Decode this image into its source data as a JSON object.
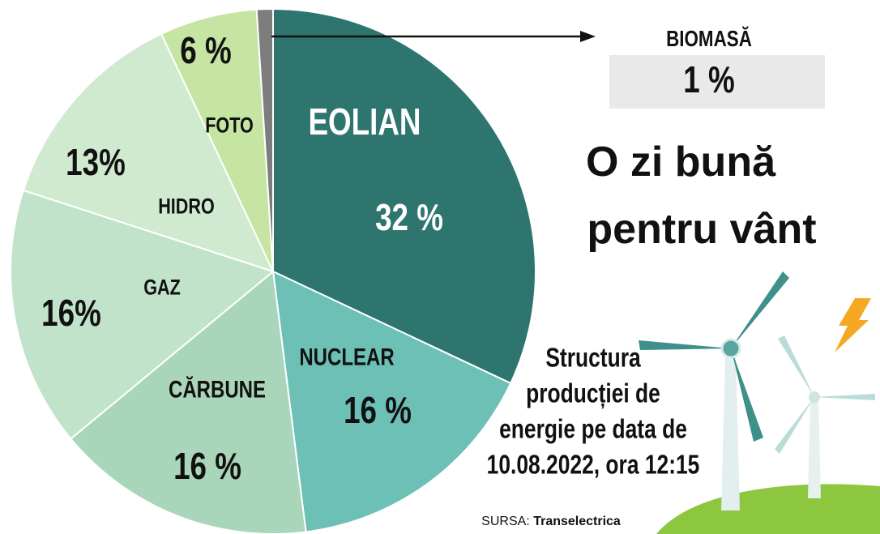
{
  "chart_data": {
    "type": "pie",
    "title_lines": [
      "O zi bună",
      "pentru vânt"
    ],
    "annotation_lines": [
      "Structura",
      "producției de",
      "energie pe data de",
      "10.08.2022, ora 12:15"
    ],
    "source_label": "SURSA:",
    "source": "Transelectrica",
    "categories": [
      "EOLIAN",
      "NUCLEAR",
      "CĂRBUNE",
      "GAZ",
      "HIDRO",
      "FOTO",
      "BIOMASĂ"
    ],
    "values": [
      32,
      16,
      16,
      16,
      13,
      6,
      1
    ],
    "value_labels": [
      "32 %",
      "16 %",
      "16 %",
      "16%",
      "13%",
      "6 %",
      "1 %"
    ],
    "colors": [
      "#2f756f",
      "#6cc0b6",
      "#a9d6ba",
      "#c1e3ca",
      "#cfeace",
      "#c6e4a2",
      "#7d7d7d"
    ]
  }
}
